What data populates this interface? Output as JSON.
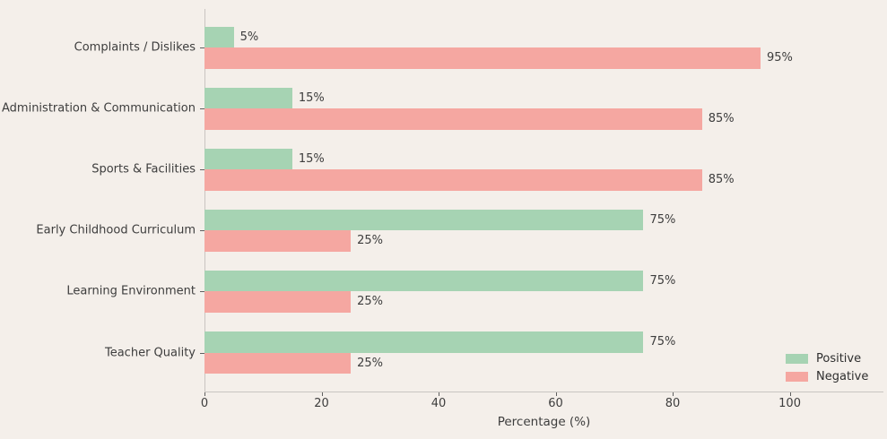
{
  "chart_data": {
    "type": "bar",
    "orientation": "horizontal",
    "title": "",
    "xlabel": "Percentage (%)",
    "ylabel": "",
    "categories": [
      "Complaints / Dislikes",
      "Administration & Communication",
      "Sports & Facilities",
      "Early Childhood Curriculum",
      "Learning Environment",
      "Teacher Quality"
    ],
    "series": [
      {
        "name": "Positive",
        "color": "#a6d3b3",
        "values": [
          5,
          15,
          15,
          75,
          75,
          75
        ],
        "labels": [
          "5%",
          "15%",
          "15%",
          "75%",
          "75%",
          "75%"
        ]
      },
      {
        "name": "Negative",
        "color": "#f5a7a1",
        "values": [
          95,
          85,
          85,
          25,
          25,
          25
        ],
        "labels": [
          "95%",
          "85%",
          "85%",
          "25%",
          "25%",
          "25%"
        ]
      }
    ],
    "xlim": [
      0,
      116
    ],
    "xticks": [
      0,
      20,
      40,
      60,
      80,
      100
    ],
    "xtick_labels": [
      "0",
      "20",
      "40",
      "60",
      "80",
      "100"
    ],
    "grid": false,
    "legend_position": "lower right",
    "background_color": "#f4efea",
    "axis_color": "#c9c5c1",
    "text_color": "#3d3d3d"
  }
}
